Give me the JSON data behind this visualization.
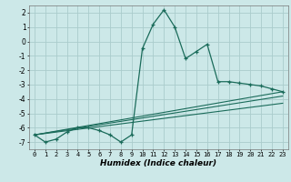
{
  "title": "",
  "xlabel": "Humidex (Indice chaleur)",
  "ylabel": "",
  "bg_color": "#cce8e8",
  "grid_color": "#aacccc",
  "line_color": "#1a6b5a",
  "xlim": [
    -0.5,
    23.5
  ],
  "ylim": [
    -7.5,
    2.5
  ],
  "xticks": [
    0,
    1,
    2,
    3,
    4,
    5,
    6,
    7,
    8,
    9,
    10,
    11,
    12,
    13,
    14,
    15,
    16,
    17,
    18,
    19,
    20,
    21,
    22,
    23
  ],
  "yticks": [
    -7,
    -6,
    -5,
    -4,
    -3,
    -2,
    -1,
    0,
    1,
    2
  ],
  "main_x": [
    0,
    1,
    2,
    3,
    4,
    5,
    6,
    7,
    8,
    9,
    10,
    11,
    12,
    13,
    14,
    15,
    16,
    17,
    18,
    19,
    20,
    21,
    22,
    23
  ],
  "main_y": [
    -6.5,
    -7.0,
    -6.8,
    -6.3,
    -6.0,
    -6.0,
    -6.2,
    -6.5,
    -7.0,
    -6.5,
    -0.5,
    1.2,
    2.2,
    1.0,
    -1.2,
    -0.7,
    -0.2,
    -2.8,
    -2.8,
    -2.9,
    -3.0,
    -3.1,
    -3.3,
    -3.5
  ],
  "line1_x": [
    0,
    23
  ],
  "line1_y": [
    -6.5,
    -3.5
  ],
  "line2_x": [
    0,
    23
  ],
  "line2_y": [
    -6.5,
    -3.8
  ],
  "line3_x": [
    0,
    23
  ],
  "line3_y": [
    -6.5,
    -4.3
  ]
}
